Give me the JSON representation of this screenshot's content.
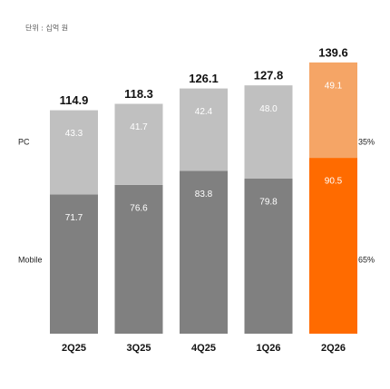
{
  "chart_data": {
    "type": "stacked-bar",
    "subtitle": "단위 : 십억 원",
    "categories": [
      "2Q25",
      "3Q25",
      "4Q25",
      "1Q26",
      "2Q26"
    ],
    "series": [
      {
        "name": "Mobile",
        "color": "#808080",
        "colors": [
          "#808080",
          "#808080",
          "#808080",
          "#808080",
          "#ff6b00"
        ],
        "values": [
          71.7,
          76.6,
          83.8,
          79.8,
          90.5
        ]
      },
      {
        "name": "PC",
        "color": "#c0c0c0",
        "colors": [
          "#c0c0c0",
          "#c0c0c0",
          "#c0c0c0",
          "#c0c0c0",
          "#f5a566"
        ],
        "values": [
          43.3,
          41.7,
          42.4,
          48,
          49.1
        ],
        "value_labels": [
          "43.3",
          "41.7",
          "42.4",
          "48.0",
          "49.1"
        ]
      }
    ],
    "totals": [
      114.9,
      118.3,
      126.1,
      127.8,
      139.6
    ],
    "share_labels": [
      "65%",
      "35%"
    ],
    "ylim": [
      0,
      140
    ]
  }
}
